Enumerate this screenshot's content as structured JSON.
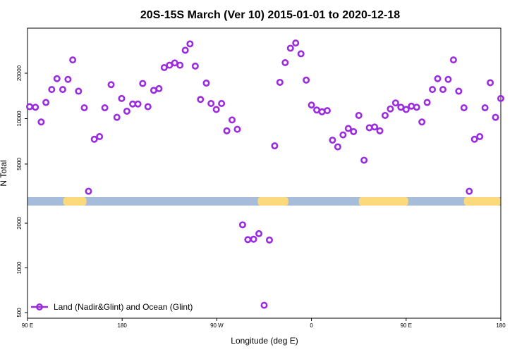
{
  "chart_data": {
    "type": "scatter",
    "title": "20S-15S March (Ver 10)   2015-01-01 to 2020-12-18",
    "xlabel": "Longitude (deg E)",
    "ylabel": "N Total",
    "x_ticks": [
      {
        "value": 90,
        "label": "90 E"
      },
      {
        "value": 180,
        "label": "180"
      },
      {
        "value": 270,
        "label": "90 W"
      },
      {
        "value": 360,
        "label": "0"
      },
      {
        "value": 450,
        "label": "90 E"
      },
      {
        "value": 540,
        "label": "180"
      }
    ],
    "xlim": [
      90,
      540
    ],
    "y_scale": "log",
    "y_ticks_upper": [
      5000,
      10000,
      20000
    ],
    "y_ticks_lower": [
      500,
      1000,
      2000
    ],
    "legend": {
      "label": "Land (Nadir&Glint) and Ocean (Glint)",
      "position": "bottom-left"
    },
    "colors": {
      "points": "#9b2be0",
      "land": "#fcd97a",
      "ocean": "#a6bcdb"
    },
    "surface_band": {
      "ocean": "#a6bcdb",
      "land_ranges": [
        [
          124,
          146
        ],
        [
          309,
          338
        ],
        [
          405,
          452
        ],
        [
          505,
          522
        ],
        [
          512,
          580
        ]
      ]
    },
    "series": [
      {
        "name": "Land (Nadir&Glint) and Ocean (Glint)",
        "x": [
          92,
          97.5,
          103,
          107.5,
          113,
          118,
          123.5,
          128.5,
          133,
          138.5,
          144,
          148,
          153.5,
          158.5,
          163.5,
          169.5,
          175,
          179.5,
          184.5,
          190,
          195,
          199.5,
          204.5,
          210,
          215,
          220,
          225,
          230,
          235,
          240,
          244.5,
          249.5,
          254.5,
          260,
          264.5,
          269.5,
          274.5,
          279.5,
          284.5,
          289.5,
          294.5,
          299.5,
          305,
          310,
          315,
          320,
          325,
          330,
          335,
          340,
          345,
          350,
          355,
          360,
          365,
          370,
          375,
          380,
          385,
          390,
          395,
          400,
          405,
          410,
          415,
          420,
          425,
          430,
          435,
          440,
          445,
          450,
          455,
          460,
          465,
          470,
          475,
          480,
          485,
          490,
          495,
          500,
          505,
          510,
          515,
          520,
          525,
          530,
          535,
          540
        ],
        "y": [
          12000,
          11900,
          9500,
          12800,
          15600,
          18400,
          15600,
          18200,
          24500,
          15200,
          11800,
          3300,
          7300,
          7600,
          11800,
          16800,
          10200,
          13600,
          11200,
          12500,
          12500,
          17100,
          12000,
          15400,
          15800,
          21800,
          22600,
          23400,
          22600,
          28400,
          31300,
          22300,
          13400,
          17200,
          12600,
          11500,
          12600,
          8300,
          9800,
          8500,
          1950,
          1550,
          1560,
          1700,
          560,
          1540,
          6600,
          17400,
          23500,
          29300,
          31700,
          26900,
          18000,
          12300,
          11400,
          11100,
          11300,
          7200,
          6500,
          7800,
          8600,
          8200,
          10500,
          5300,
          8700,
          8800,
          8300,
          10500,
          11600,
          12700,
          11900,
          11500,
          12100,
          11900,
          9500,
          12800,
          15600,
          18400,
          15600,
          18200,
          24500,
          15200,
          11800,
          3300,
          7300,
          7600,
          11800,
          17300,
          10200,
          13600
        ]
      }
    ]
  }
}
